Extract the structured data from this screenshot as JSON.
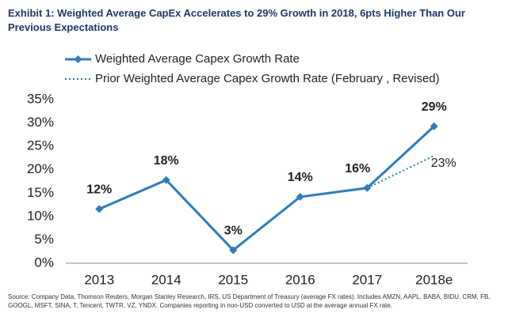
{
  "chart_data": {
    "type": "line",
    "title": "Exhibit 1:  Weighted Average CapEx Accelerates to 29% Growth in 2018, 6pts Higher Than Our Previous Expectations",
    "categories": [
      "2013",
      "2014",
      "2015",
      "2016",
      "2017",
      "2018e"
    ],
    "series": [
      {
        "name": "Weighted Average Capex Growth Rate",
        "color": "#2f7bbf",
        "style": "solid",
        "marker": "diamond",
        "values": [
          11.6,
          17.8,
          2.8,
          14.2,
          16.1,
          29.3
        ],
        "value_labels": [
          "12%",
          "18%",
          "3%",
          "14%",
          "16%",
          "29%"
        ]
      },
      {
        "name": "Prior Weighted Average Capex Growth Rate (February , Revised)",
        "color": "#2f7bbf",
        "style": "dotted",
        "values": [
          null,
          null,
          null,
          null,
          16.1,
          23
        ],
        "value_labels": [
          null,
          null,
          null,
          null,
          null,
          "23%"
        ]
      }
    ],
    "ylim": [
      0,
      35
    ],
    "yticks": [
      {
        "value": 0,
        "label": "0%"
      },
      {
        "value": 5,
        "label": "5%"
      },
      {
        "value": 10,
        "label": "10%"
      },
      {
        "value": 15,
        "label": "15%"
      },
      {
        "value": 20,
        "label": "20%"
      },
      {
        "value": 25,
        "label": "25%"
      },
      {
        "value": 30,
        "label": "30%"
      },
      {
        "value": 35,
        "label": "35%"
      }
    ],
    "grid": false,
    "source": "Source: Company Data, Thomson Reuters, Morgan Stanley Research, IRS, US Department of Treasury (average FX rates). Includes AMZN, AAPL, BABA, BIDU, CRM, FB, GOOGL, MSFT, SINA, T, Tencent, TWTR, VZ, YNDX. Companies reporting in non-USD converted to USD at the average annual FX rate."
  }
}
